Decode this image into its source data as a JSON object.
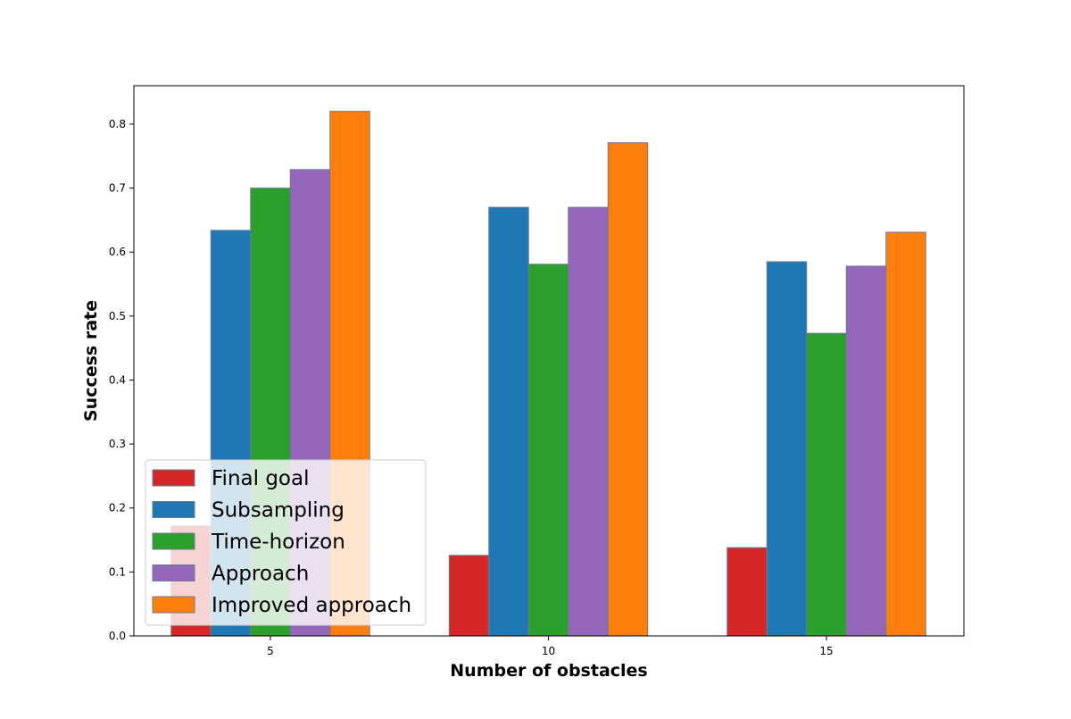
{
  "chart_data": {
    "type": "bar",
    "title": "",
    "xlabel": "Number of obstacles",
    "ylabel": "Success rate",
    "categories": [
      "5",
      "10",
      "15"
    ],
    "ylim": [
      0,
      0.86
    ],
    "yticks": [
      0.0,
      0.1,
      0.2,
      0.3,
      0.4,
      0.5,
      0.6,
      0.7,
      0.8
    ],
    "ytick_labels": [
      "0.0",
      "0.1",
      "0.2",
      "0.3",
      "0.4",
      "0.5",
      "0.6",
      "0.7",
      "0.8"
    ],
    "grid": false,
    "legend_position": "lower-left",
    "bar_edge_color": "#6b7a8f",
    "series": [
      {
        "name": "Final goal",
        "color": "#d62728",
        "values": [
          0.172,
          0.126,
          0.138
        ]
      },
      {
        "name": "Subsampling",
        "color": "#1f77b4",
        "values": [
          0.634,
          0.67,
          0.585
        ]
      },
      {
        "name": "Time-horizon",
        "color": "#2ca02c",
        "values": [
          0.7,
          0.581,
          0.473
        ]
      },
      {
        "name": "Approach",
        "color": "#9467bd",
        "values": [
          0.729,
          0.67,
          0.578
        ]
      },
      {
        "name": "Improved approach",
        "color": "#ff7f0e",
        "values": [
          0.82,
          0.771,
          0.631
        ]
      }
    ]
  }
}
